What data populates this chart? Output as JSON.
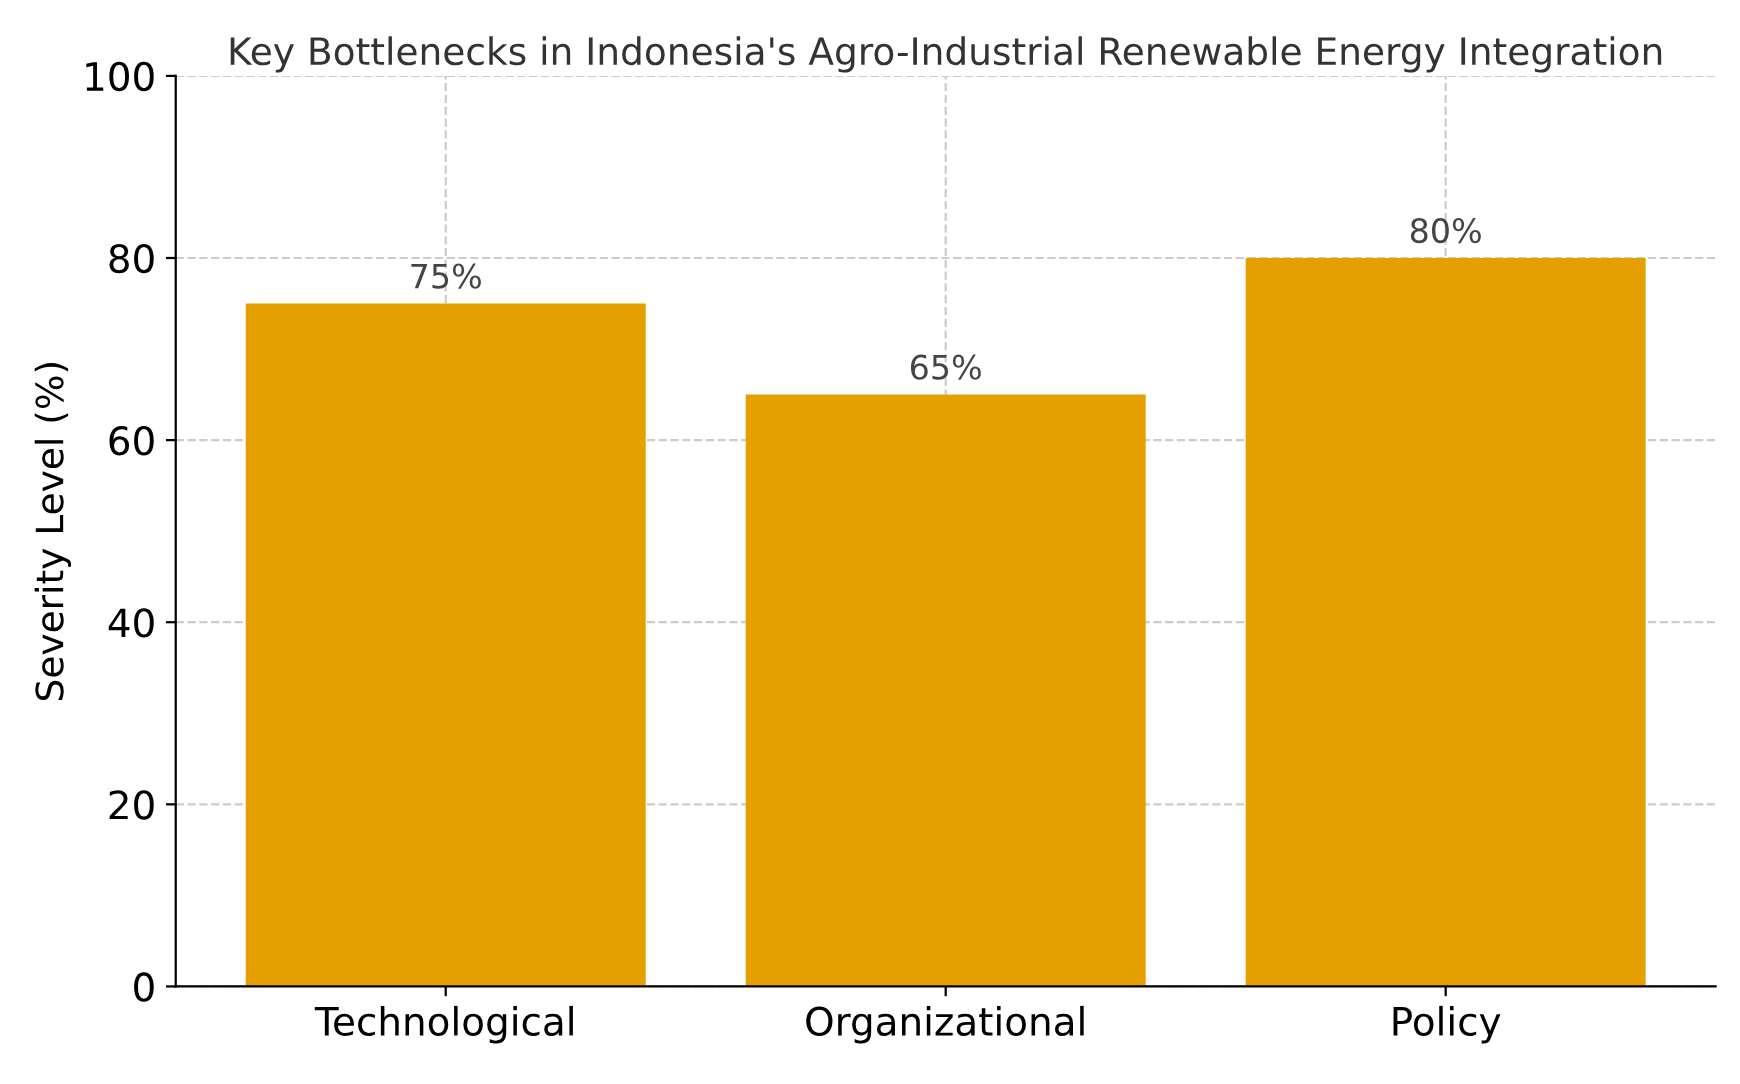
{
  "chart_data": {
    "type": "bar",
    "title": "Key Bottlenecks in Indonesia's Agro-Industrial Renewable Energy Integration",
    "ylabel": "Severity Level (%)",
    "categories": [
      "Technological",
      "Organizational",
      "Policy"
    ],
    "values": [
      75,
      65,
      80
    ],
    "color": "#e69f00",
    "value_labels": [
      "75%",
      "65%",
      "80%"
    ],
    "ylim": [
      0,
      100
    ],
    "yticks": [
      0,
      20,
      40,
      60,
      80,
      100
    ],
    "grid": true,
    "line_style": "dashed"
  }
}
